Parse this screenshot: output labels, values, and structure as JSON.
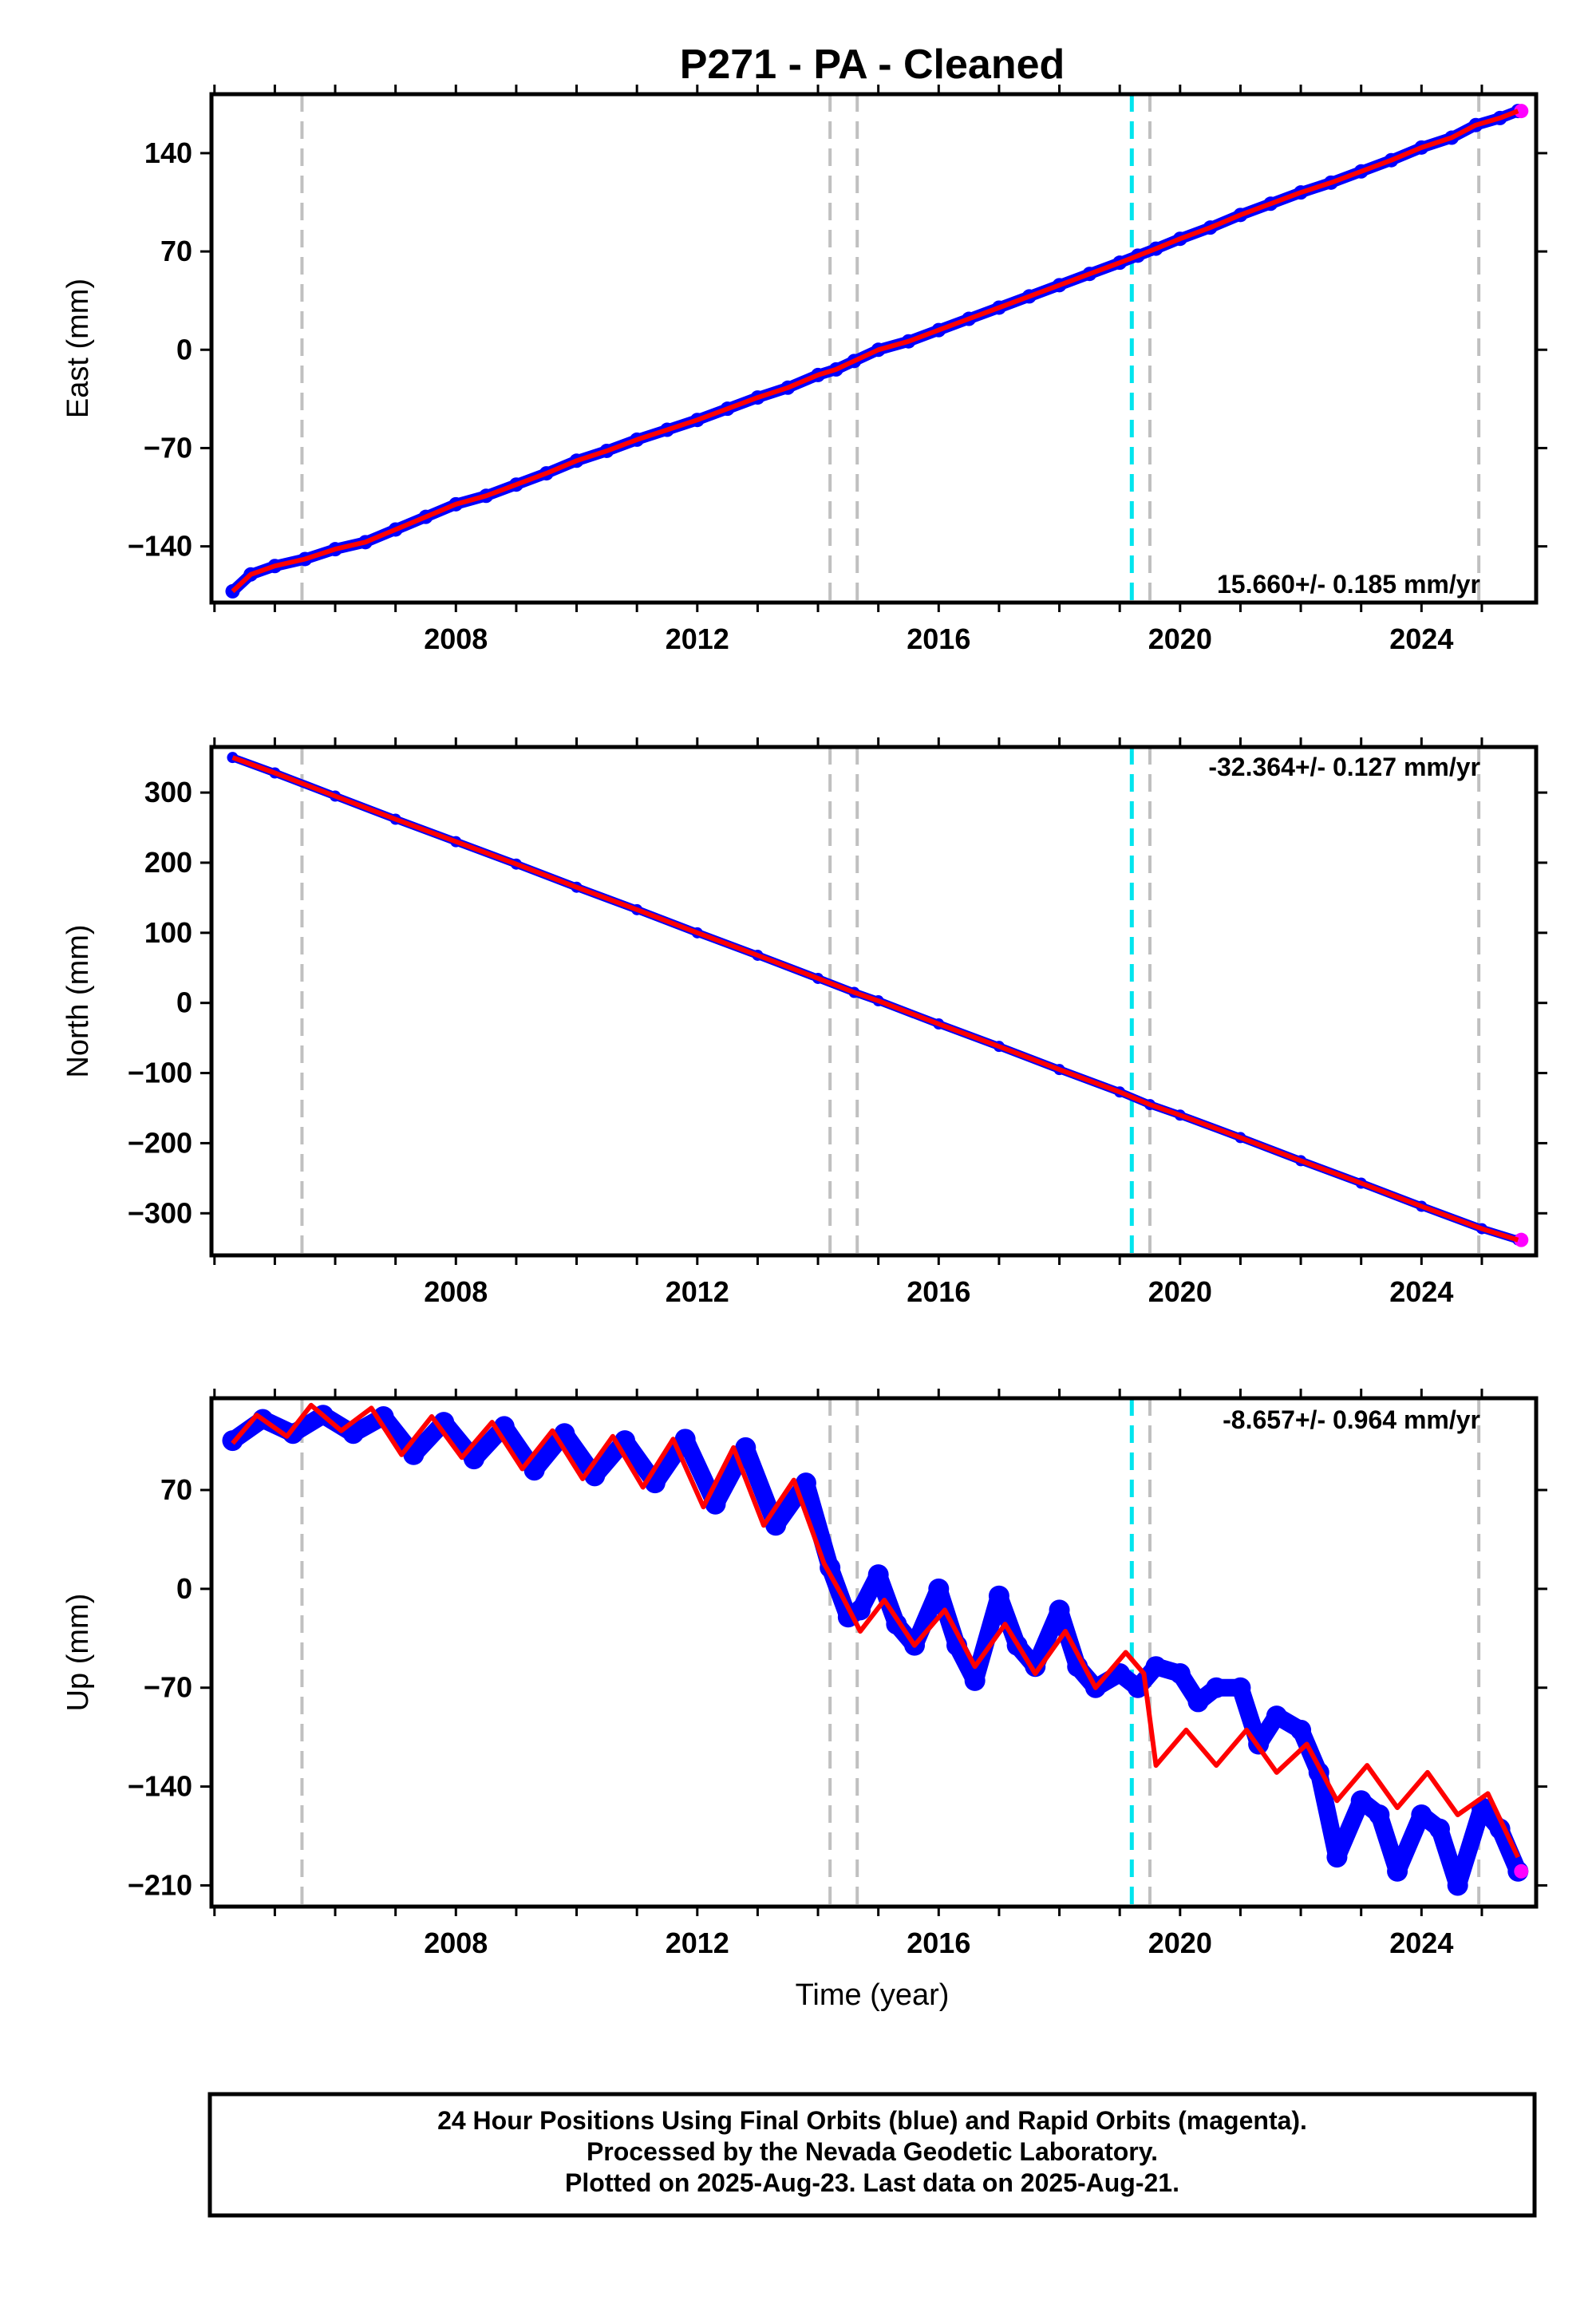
{
  "title": "P271  - PA - Cleaned",
  "xlabel": "Time (year)",
  "footer": {
    "line1": "24 Hour Positions Using Final Orbits (blue) and Rapid Orbits (magenta).",
    "line2": "Processed by the Nevada Geodetic Laboratory.",
    "line3": "Plotted on 2025-Aug-23. Last data on 2025-Aug-21."
  },
  "colors": {
    "final": "#0000ff",
    "rapid": "#ff00ff",
    "model": "#ff0000",
    "equipment_change": "#c0c0c0",
    "earthquake": "#00e5ee"
  },
  "chart_data": [
    {
      "type": "scatter",
      "component": "East",
      "ylabel": "East (mm)",
      "rate": "15.660+/- 0.185 mm/yr",
      "xlim": [
        2003.95,
        2025.9
      ],
      "ylim": [
        -180,
        182
      ],
      "yticks": [
        "140",
        "70",
        "0",
        "−70",
        "−140"
      ],
      "ytick_values": [
        140,
        70,
        0,
        -70,
        -140
      ],
      "xticks": [
        "2008",
        "2012",
        "2016",
        "2020",
        "2024"
      ],
      "xtick_values": [
        2008,
        2012,
        2016,
        2020,
        2024
      ],
      "series": [
        {
          "values_x": [
            2004.3,
            2004.6,
            2005.0,
            2005.5,
            2006.0,
            2006.5,
            2007.0,
            2007.5,
            2008.0,
            2008.5,
            2009.0,
            2009.5,
            2010.0,
            2010.5,
            2011.0,
            2011.5,
            2012.0,
            2012.5,
            2013.0,
            2013.5,
            2014.0,
            2014.3,
            2014.6,
            2015.0,
            2015.5,
            2016.0,
            2016.5,
            2017.0,
            2017.5,
            2018.0,
            2018.5,
            2019.0,
            2019.3,
            2019.6,
            2020.0,
            2020.5,
            2021.0,
            2021.5,
            2022.0,
            2022.5,
            2023.0,
            2023.5,
            2024.0,
            2024.5,
            2024.9,
            2025.3,
            2025.6
          ],
          "values_y": [
            -172,
            -160,
            -154,
            -149,
            -142,
            -137,
            -128,
            -119,
            -110,
            -104,
            -96,
            -88,
            -79,
            -72,
            -64,
            -57,
            -50,
            -42,
            -34,
            -27,
            -18,
            -14,
            -8,
            0,
            6,
            14,
            22,
            30,
            38,
            46,
            54,
            62,
            67,
            72,
            79,
            87,
            96,
            104,
            112,
            119,
            127,
            135,
            144,
            151,
            160,
            165,
            170
          ]
        }
      ]
    },
    {
      "type": "scatter",
      "component": "North",
      "ylabel": "North (mm)",
      "rate": "-32.364+/- 0.127 mm/yr",
      "xlim": [
        2003.95,
        2025.9
      ],
      "ylim": [
        -360,
        365
      ],
      "yticks": [
        "300",
        "200",
        "100",
        "0",
        "−100",
        "−200",
        "−300"
      ],
      "ytick_values": [
        300,
        200,
        100,
        0,
        -100,
        -200,
        -300
      ],
      "xticks": [
        "2008",
        "2012",
        "2016",
        "2020",
        "2024"
      ],
      "xtick_values": [
        2008,
        2012,
        2016,
        2020,
        2024
      ],
      "series": [
        {
          "values_x": [
            2004.3,
            2005.0,
            2006.0,
            2007.0,
            2008.0,
            2009.0,
            2010.0,
            2011.0,
            2012.0,
            2013.0,
            2014.0,
            2014.6,
            2015.0,
            2016.0,
            2017.0,
            2018.0,
            2019.0,
            2019.5,
            2020.0,
            2021.0,
            2022.0,
            2023.0,
            2024.0,
            2025.0,
            2025.6
          ],
          "values_y": [
            350,
            328,
            295,
            262,
            230,
            198,
            165,
            133,
            100,
            68,
            35,
            15,
            3,
            -30,
            -62,
            -95,
            -127,
            -145,
            -160,
            -192,
            -225,
            -257,
            -290,
            -322,
            -338
          ]
        }
      ]
    },
    {
      "type": "scatter",
      "component": "Up",
      "ylabel": "Up (mm)",
      "rate": "-8.657+/- 0.964 mm/yr",
      "xlim": [
        2003.95,
        2025.9
      ],
      "ylim": [
        -225,
        135
      ],
      "yticks": [
        "70",
        "0",
        "−70",
        "−140",
        "−210"
      ],
      "ytick_values": [
        70,
        0,
        -70,
        -140,
        -210
      ],
      "xticks": [
        "2008",
        "2012",
        "2016",
        "2020",
        "2024"
      ],
      "xtick_values": [
        2008,
        2012,
        2016,
        2020,
        2024
      ],
      "series": [
        {
          "name": "data",
          "values_x": [
            2004.3,
            2004.8,
            2005.3,
            2005.8,
            2006.3,
            2006.8,
            2007.3,
            2007.8,
            2008.3,
            2008.8,
            2009.3,
            2009.8,
            2010.3,
            2010.8,
            2011.3,
            2011.8,
            2012.3,
            2012.8,
            2013.3,
            2013.8,
            2014.2,
            2014.5,
            2014.7,
            2015.0,
            2015.3,
            2015.6,
            2016.0,
            2016.3,
            2016.6,
            2017.0,
            2017.3,
            2017.6,
            2018.0,
            2018.3,
            2018.6,
            2019.0,
            2019.3,
            2019.6,
            2020.0,
            2020.3,
            2020.6,
            2021.0,
            2021.3,
            2021.6,
            2022.0,
            2022.3,
            2022.6,
            2023.0,
            2023.3,
            2023.6,
            2024.0,
            2024.3,
            2024.6,
            2025.0,
            2025.3,
            2025.6
          ],
          "values_y": [
            105,
            120,
            110,
            123,
            110,
            122,
            95,
            118,
            92,
            115,
            84,
            110,
            80,
            105,
            75,
            106,
            60,
            100,
            45,
            75,
            15,
            -20,
            -15,
            10,
            -25,
            -40,
            0,
            -40,
            -65,
            -5,
            -40,
            -55,
            -15,
            -55,
            -70,
            -60,
            -70,
            -55,
            -60,
            -80,
            -70,
            -70,
            -110,
            -90,
            -100,
            -130,
            -190,
            -150,
            -160,
            -200,
            -160,
            -170,
            -210,
            -155,
            -170,
            -200
          ]
        },
        {
          "name": "model",
          "values_x": [
            2004.3,
            2004.7,
            2005.2,
            2005.6,
            2006.1,
            2006.6,
            2007.1,
            2007.6,
            2008.1,
            2008.6,
            2009.1,
            2009.6,
            2010.1,
            2010.6,
            2011.1,
            2011.6,
            2012.1,
            2012.6,
            2013.1,
            2013.6,
            2014.1,
            2014.4,
            2014.7,
            2015.1,
            2015.6,
            2016.1,
            2016.6,
            2017.1,
            2017.6,
            2018.1,
            2018.6,
            2019.1,
            2019.4,
            2019.6,
            2020.1,
            2020.6,
            2021.1,
            2021.6,
            2022.1,
            2022.6,
            2023.1,
            2023.6,
            2024.1,
            2024.6,
            2025.1,
            2025.6
          ],
          "values_y": [
            103,
            123,
            108,
            130,
            112,
            128,
            95,
            122,
            93,
            118,
            85,
            112,
            78,
            108,
            72,
            106,
            58,
            100,
            45,
            77,
            18,
            -5,
            -30,
            -8,
            -40,
            -15,
            -55,
            -25,
            -60,
            -30,
            -70,
            -45,
            -60,
            -125,
            -100,
            -125,
            -100,
            -130,
            -110,
            -150,
            -125,
            -155,
            -130,
            -160,
            -145,
            -190
          ]
        }
      ]
    }
  ],
  "offsets": {
    "equipment_years": [
      2005.45,
      2014.2,
      2014.65,
      2019.5,
      2024.95
    ],
    "earthquake_years": [
      2019.2
    ]
  }
}
